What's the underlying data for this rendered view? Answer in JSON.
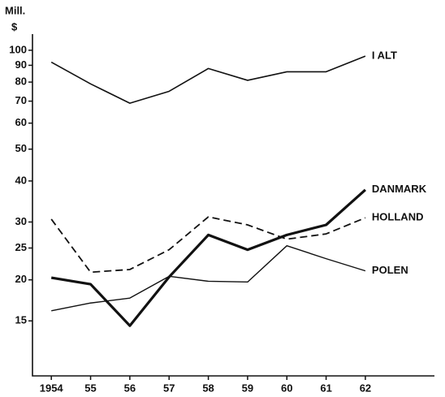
{
  "chart_data": {
    "type": "line",
    "y_label": [
      "Mill.",
      "$"
    ],
    "log_scale": true,
    "x": [
      1954,
      1955,
      1956,
      1957,
      1958,
      1959,
      1960,
      1961,
      1962
    ],
    "xlim": [
      1953.52,
      1963.76
    ],
    "xticks": [
      {
        "value": 1954,
        "label": "1954"
      },
      {
        "value": 1955,
        "label": "55"
      },
      {
        "value": 1956,
        "label": "56"
      },
      {
        "value": 1957,
        "label": "57"
      },
      {
        "value": 1958,
        "label": "58"
      },
      {
        "value": 1959,
        "label": "59"
      },
      {
        "value": 1960,
        "label": "60"
      },
      {
        "value": 1961,
        "label": "61"
      },
      {
        "value": 1962,
        "label": "62"
      }
    ],
    "ylim": [
      10.2,
      112
    ],
    "yticks": [
      15,
      20,
      25,
      30,
      40,
      50,
      60,
      70,
      80,
      90,
      100
    ],
    "series": [
      {
        "name": "I ALT",
        "color": "#111",
        "line_width": 1.6,
        "dash": "none",
        "values": [
          92,
          79,
          69,
          75,
          88,
          81,
          86,
          86,
          96
        ]
      },
      {
        "name": "DANMARK",
        "color": "#111",
        "line_width": 3.2,
        "dash": "none",
        "values": [
          20.3,
          19.4,
          14.5,
          20.4,
          27.4,
          24.7,
          27.4,
          29.4,
          37.6
        ]
      },
      {
        "name": "HOLLAND",
        "color": "#111",
        "line_width": 1.8,
        "dash": "9 5",
        "values": [
          30.6,
          21.1,
          21.5,
          24.7,
          31.1,
          29.4,
          26.6,
          27.6,
          30.9
        ]
      },
      {
        "name": "POLEN",
        "color": "#111",
        "line_width": 1.4,
        "dash": "none",
        "values": [
          16.1,
          17.0,
          17.6,
          20.5,
          19.8,
          19.7,
          25.4,
          23.2,
          21.3
        ]
      }
    ]
  }
}
